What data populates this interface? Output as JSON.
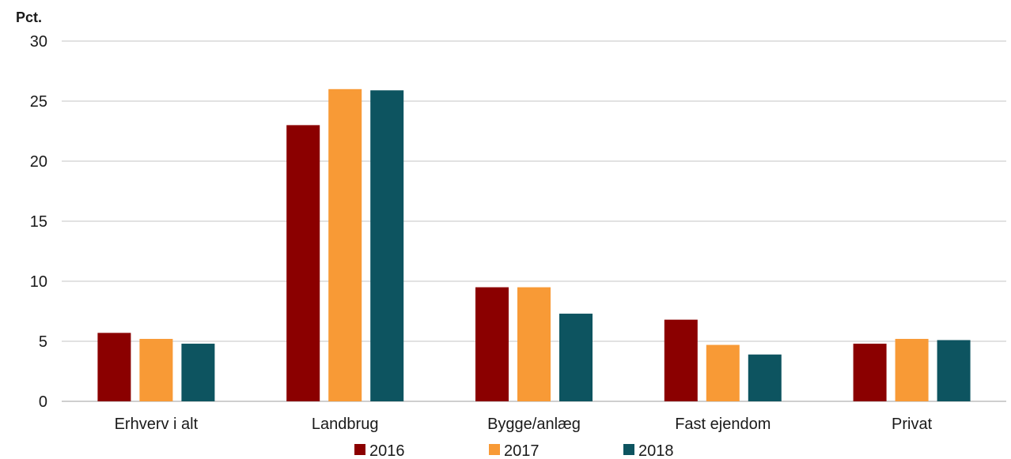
{
  "chart_data": {
    "type": "bar",
    "y_unit_label": "Pct.",
    "categories": [
      "Erhverv i alt",
      "Landbrug",
      "Bygge/anlæg",
      "Fast ejendom",
      "Privat"
    ],
    "series": [
      {
        "name": "2016",
        "color": "#8b0000",
        "values": [
          5.7,
          23.0,
          9.5,
          6.8,
          4.8
        ]
      },
      {
        "name": "2017",
        "color": "#f89a36",
        "values": [
          5.2,
          26.0,
          9.5,
          4.7,
          5.2
        ]
      },
      {
        "name": "2018",
        "color": "#0d5460",
        "values": [
          4.8,
          25.9,
          7.3,
          3.9,
          5.1
        ]
      }
    ],
    "ylim": [
      0,
      30
    ],
    "yticks": [
      0,
      5,
      10,
      15,
      20,
      25,
      30
    ],
    "grid": true,
    "legend_position": "bottom"
  }
}
